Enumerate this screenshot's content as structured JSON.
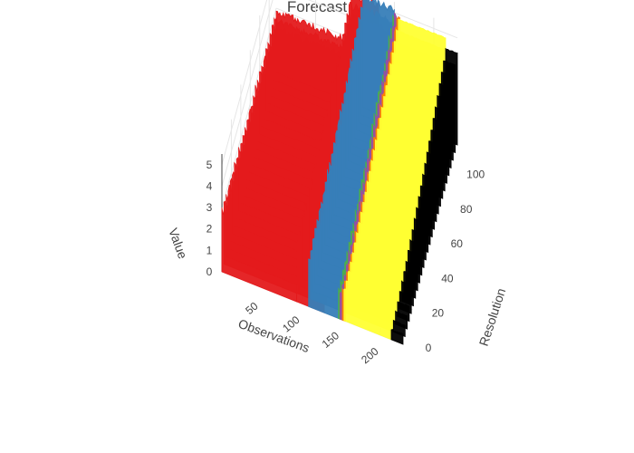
{
  "chart_data": {
    "type": "surface",
    "title": "Forecast",
    "axes": {
      "x": {
        "label": "Observations",
        "range": [
          0,
          230
        ],
        "ticks": [
          "50",
          "100",
          "150",
          "200"
        ]
      },
      "y": {
        "label": "Resolution",
        "range": [
          0,
          115
        ],
        "ticks": [
          "0",
          "20",
          "40",
          "60",
          "80",
          "100"
        ]
      },
      "z": {
        "label": "Value",
        "range": [
          0,
          5.5
        ],
        "ticks": [
          "0",
          "1",
          "2",
          "3",
          "4",
          "5"
        ]
      }
    },
    "grid": true,
    "legend": "none",
    "bands": [
      {
        "color": "#e41a1c",
        "x_range": [
          0,
          95
        ],
        "base_value": 3.0,
        "peak_value": 3.0
      },
      {
        "color": "#e41a1c",
        "x_range": [
          95,
          130
        ],
        "base_value": 3.0,
        "peak_value": 5.2
      },
      {
        "color": "#377eb8",
        "x_range": [
          110,
          150
        ],
        "base_value": 2.5,
        "peak_value": 5.3
      },
      {
        "color": "#4daf4a",
        "x_range": [
          148,
          152
        ],
        "base_value": 1.5,
        "peak_value": 5.0
      },
      {
        "color": "#984ea3",
        "x_range": [
          150,
          154
        ],
        "base_value": 1.5,
        "peak_value": 5.0
      },
      {
        "color": "#ff7f00",
        "x_range": [
          153,
          157
        ],
        "base_value": 1.5,
        "peak_value": 5.0
      },
      {
        "color": "#ffff33",
        "x_range": [
          155,
          215
        ],
        "base_value": 1.5,
        "peak_value": 4.8
      },
      {
        "color": "#000000",
        "x_range": [
          215,
          230
        ],
        "base_value": 0.5,
        "peak_value": 4.3
      }
    ]
  }
}
